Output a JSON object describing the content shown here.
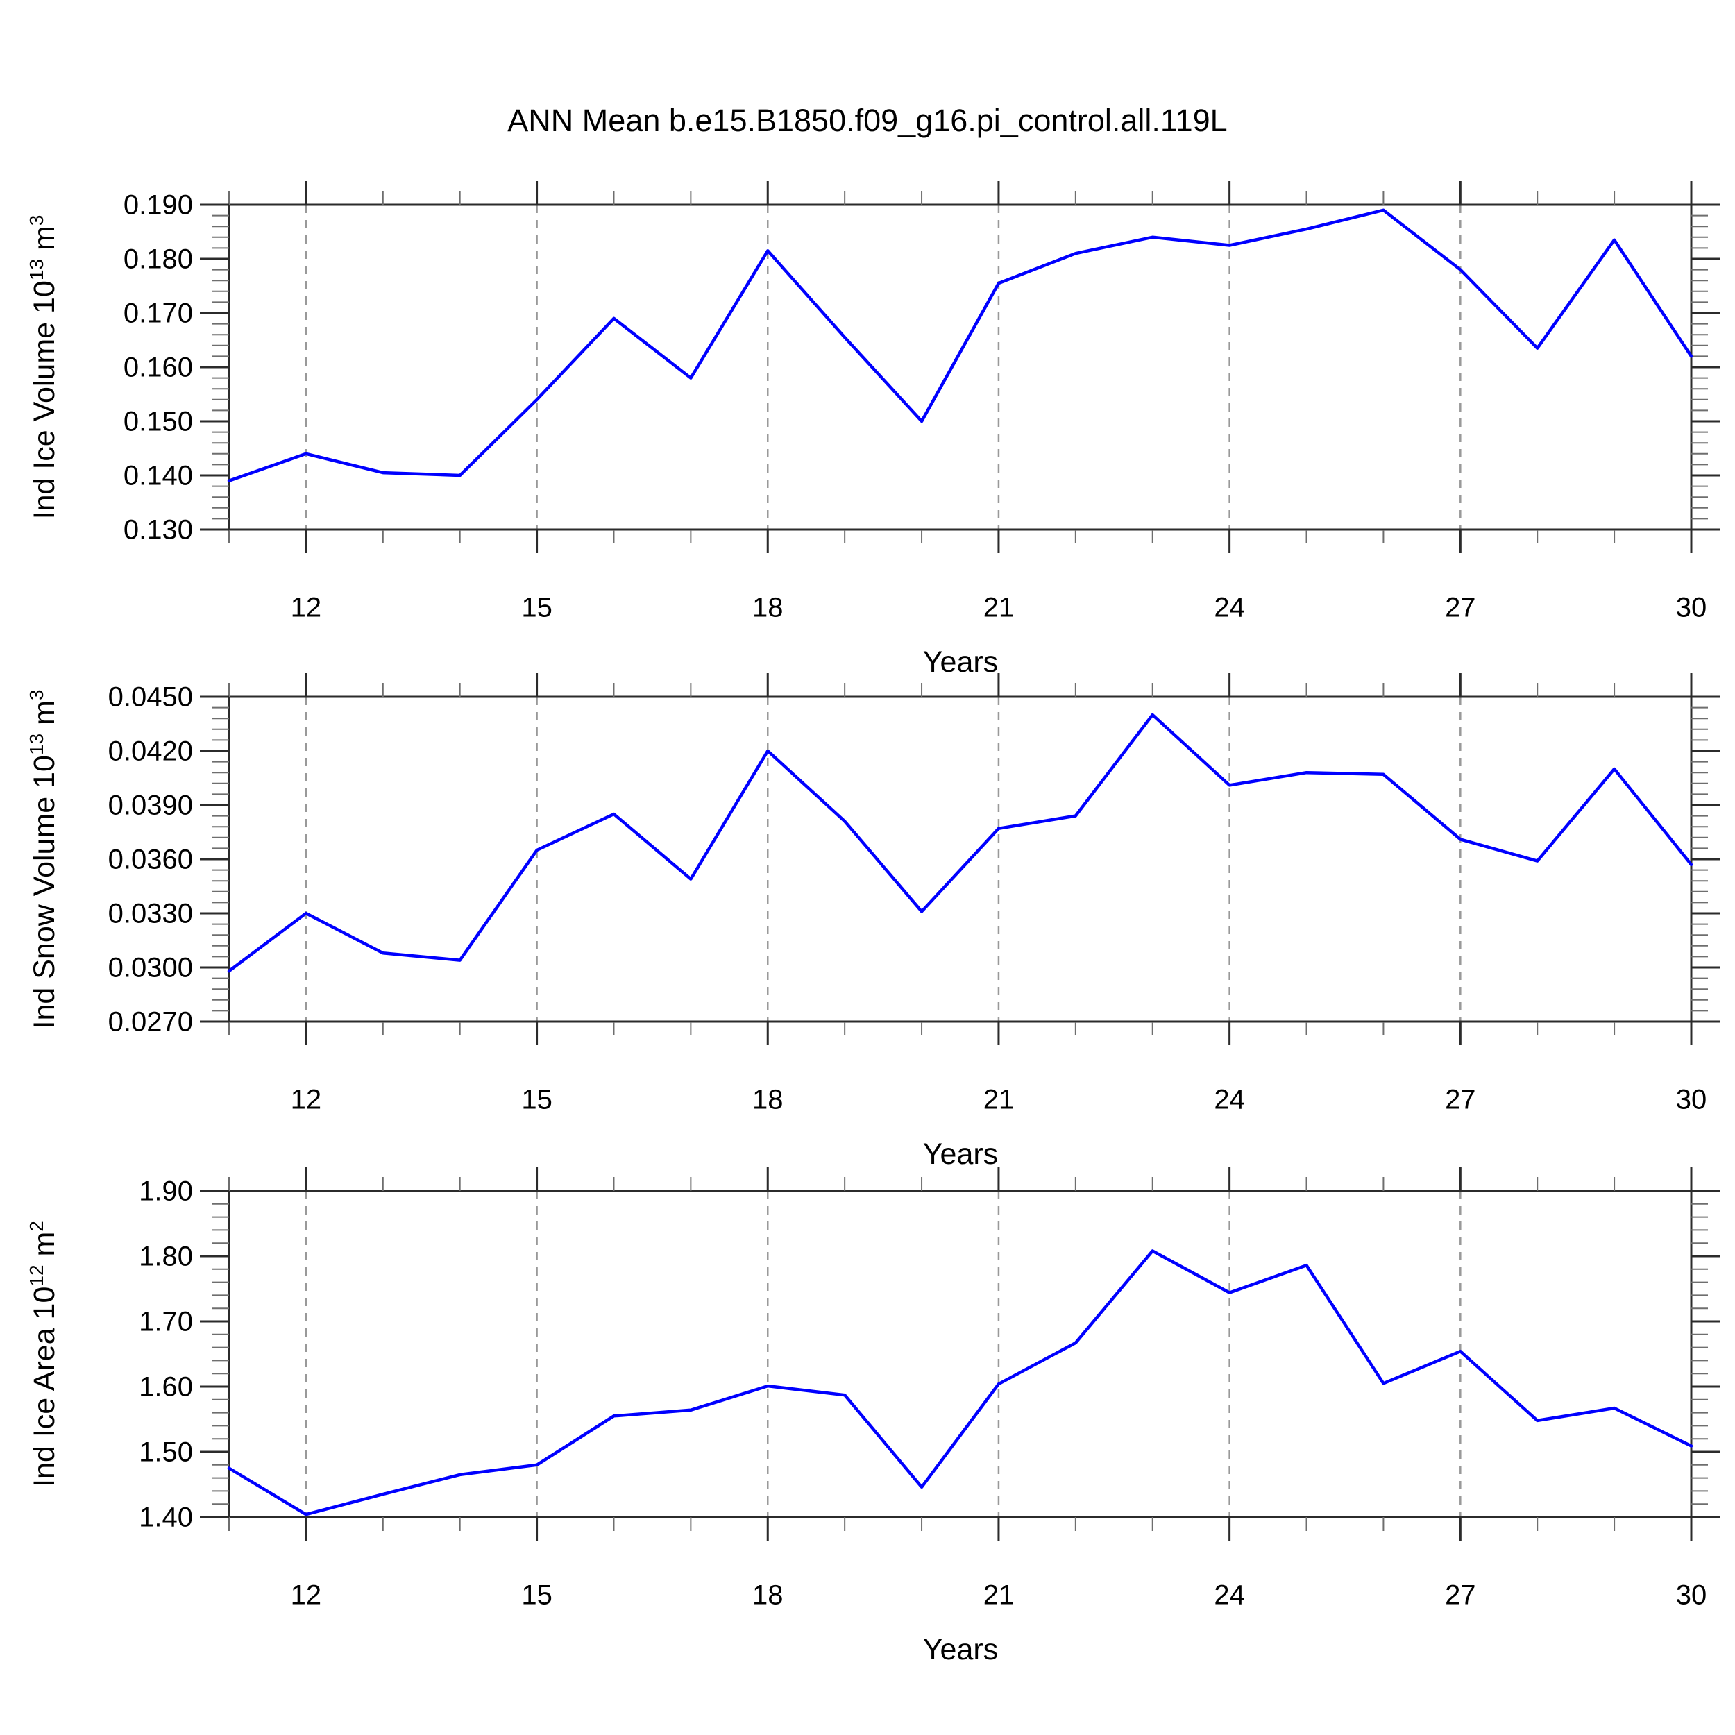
{
  "title": "ANN Mean b.e15.B1850.f09_g16.pi_control.all.119L",
  "colors": {
    "line": "#0000ff",
    "axis": "#2b2b2b",
    "minor_tick": "#6e6e6e",
    "gridline": "#999999",
    "text": "#000000",
    "background": "#ffffff"
  },
  "x_axis": {
    "label": "Years",
    "range": [
      11,
      30
    ],
    "major_ticks": [
      12,
      15,
      18,
      21,
      24,
      27,
      30
    ],
    "major_tick_labels": [
      "12",
      "15",
      "18",
      "21",
      "24",
      "27",
      "30"
    ],
    "minor_step": 1,
    "gridline_years": [
      12,
      15,
      18,
      21,
      24,
      27
    ]
  },
  "chart_data": [
    {
      "type": "line",
      "panel": "ice-volume",
      "ylabel_text": "Ind Ice Volume 10¹³ m³",
      "ylabel_parts": [
        {
          "text": "Ind Ice Volume 10"
        },
        {
          "text": "13",
          "sup": true
        },
        {
          "text": " m"
        },
        {
          "text": "3",
          "sup": true
        }
      ],
      "ylim": [
        0.13,
        0.19
      ],
      "ytick_step": 0.01,
      "yminor_step": 0.002,
      "ytick_labels": [
        "0.190",
        "0.180",
        "0.170",
        "0.160",
        "0.150",
        "0.140",
        "0.130"
      ],
      "x": [
        11,
        12,
        13,
        14,
        15,
        16,
        17,
        18,
        19,
        20,
        21,
        22,
        23,
        24,
        25,
        26,
        27,
        28,
        29,
        30
      ],
      "values": [
        0.139,
        0.144,
        0.1405,
        0.14,
        0.154,
        0.169,
        0.158,
        0.1815,
        0.1655,
        0.15,
        0.1755,
        0.181,
        0.184,
        0.1825,
        0.1855,
        0.189,
        0.178,
        0.1635,
        0.1835,
        0.162
      ]
    },
    {
      "type": "line",
      "panel": "snow-volume",
      "ylabel_text": "Ind Snow Volume 10¹³ m³",
      "ylabel_parts": [
        {
          "text": "Ind Snow Volume 10"
        },
        {
          "text": "13",
          "sup": true
        },
        {
          "text": " m"
        },
        {
          "text": "3",
          "sup": true
        }
      ],
      "ylim": [
        0.027,
        0.045
      ],
      "ytick_step": 0.003,
      "yminor_step": 0.0006,
      "ytick_labels": [
        "0.0450",
        "0.0420",
        "0.0390",
        "0.0360",
        "0.0330",
        "0.0300",
        "0.0270"
      ],
      "x": [
        11,
        12,
        13,
        14,
        15,
        16,
        17,
        18,
        19,
        20,
        21,
        22,
        23,
        24,
        25,
        26,
        27,
        28,
        29,
        30
      ],
      "values": [
        0.0298,
        0.033,
        0.0308,
        0.0304,
        0.0365,
        0.0385,
        0.0349,
        0.042,
        0.0381,
        0.0331,
        0.0377,
        0.0384,
        0.044,
        0.0401,
        0.0408,
        0.0407,
        0.0371,
        0.0359,
        0.041,
        0.0357
      ]
    },
    {
      "type": "line",
      "panel": "ice-area",
      "ylabel_text": "Ind Ice Area 10¹² m²",
      "ylabel_parts": [
        {
          "text": "Ind Ice Area 10"
        },
        {
          "text": "12",
          "sup": true
        },
        {
          "text": " m"
        },
        {
          "text": "2",
          "sup": true
        }
      ],
      "ylim": [
        1.4,
        1.9
      ],
      "ytick_step": 0.1,
      "yminor_step": 0.02,
      "ytick_labels": [
        "1.90",
        "1.80",
        "1.70",
        "1.60",
        "1.50",
        "1.40"
      ],
      "x": [
        11,
        12,
        13,
        14,
        15,
        16,
        17,
        18,
        19,
        20,
        21,
        22,
        23,
        24,
        25,
        26,
        27,
        28,
        29,
        30
      ],
      "values": [
        1.475,
        1.404,
        1.435,
        1.465,
        1.48,
        1.555,
        1.564,
        1.601,
        1.587,
        1.446,
        1.604,
        1.667,
        1.808,
        1.744,
        1.786,
        1.605,
        1.654,
        1.548,
        1.567,
        1.509
      ]
    }
  ]
}
